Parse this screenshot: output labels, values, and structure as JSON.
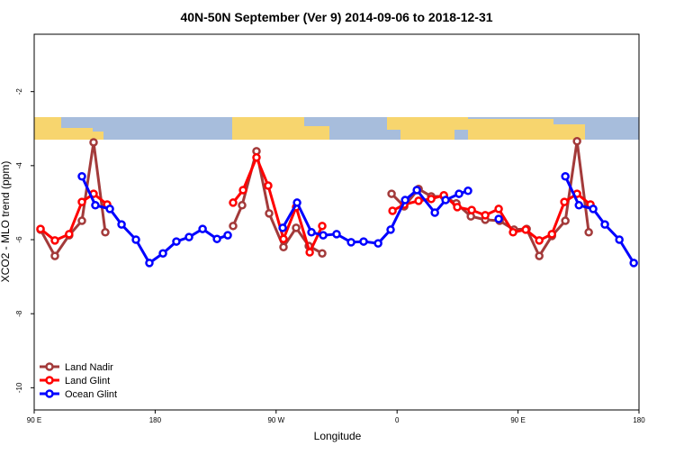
{
  "chart_data": {
    "type": "line",
    "title": "40N-50N September (Ver 9)   2014-09-06 to 2018-12-31",
    "x_label": "Longitude",
    "y_label": "XCO2 - MLO trend (ppm)",
    "xlim": [
      90,
      540
    ],
    "ylim": [
      -10.6,
      -0.45
    ],
    "xticks": [
      {
        "value": 90,
        "label": "90 E"
      },
      180,
      {
        "value": 270,
        "label": "90 W"
      },
      {
        "value": 360,
        "label": "0"
      },
      {
        "value": 450,
        "label": "90 E"
      },
      {
        "value": 540,
        "label": "180"
      }
    ],
    "yticks": [
      -2,
      -4,
      -6,
      -8,
      -10
    ],
    "legend": "bottom-left",
    "series": [
      {
        "name": "Land Nadir",
        "color": "#a33a3a",
        "x": [
          94.7,
          105.4,
          116,
          125.5,
          134.2,
          142.9,
          null,
          238,
          244.7,
          255.4,
          264.8,
          275.5,
          284.9,
          294.3,
          304.3,
          null,
          355.9,
          365.3,
          376,
          385.4,
          394.8,
          404.1,
          414.9,
          425.6,
          436.3,
          447,
          456.4,
          465.8,
          475.2,
          485.2,
          493.9,
          502.6
        ],
        "values": [
          -5.73,
          -6.44,
          -5.88,
          -5.49,
          -3.37,
          -5.8,
          null,
          -5.63,
          -5.07,
          -3.61,
          -5.29,
          -6.2,
          -5.68,
          -6.17,
          -6.37,
          null,
          -4.76,
          -5.1,
          -4.63,
          -4.83,
          -4.83,
          -5.02,
          -5.37,
          -5.46,
          -5.49,
          -5.73,
          -5.71,
          -6.44,
          -5.9,
          -5.49,
          -3.34,
          -5.8
        ]
      },
      {
        "name": "Land Glint",
        "color": "#ff0000",
        "x": [
          94.7,
          105.4,
          116,
          125.5,
          134.2,
          144.3,
          null,
          238,
          245.4,
          255.4,
          264.1,
          275.5,
          284.9,
          295,
          304.3,
          null,
          356.6,
          365.3,
          376,
          385.4,
          394.8,
          404.8,
          415.5,
          425.6,
          435.6,
          446.3,
          455.7,
          465.8,
          475.2,
          484.5,
          493.9,
          503.9
        ],
        "values": [
          -5.71,
          -6.02,
          -5.85,
          -4.98,
          -4.76,
          -5.05,
          null,
          -5,
          -4.66,
          -3.78,
          -4.54,
          -5.98,
          -5.12,
          -6.34,
          -5.63,
          null,
          -5.22,
          -5.05,
          -4.95,
          -4.9,
          -4.8,
          -5.12,
          -5.2,
          -5.34,
          -5.17,
          -5.8,
          -5.73,
          -6.02,
          -5.85,
          -4.98,
          -4.76,
          -5.05
        ]
      },
      {
        "name": "Ocean Glint",
        "color": "#0000ff",
        "x": [
          125.5,
          135.5,
          146.3,
          155,
          165.7,
          175.7,
          185.8,
          195.8,
          205.2,
          215.3,
          226,
          234,
          null,
          274.9,
          285.6,
          296.3,
          305,
          315,
          325.8,
          335.1,
          345.9,
          355.2,
          366,
          374.7,
          388.1,
          396.1,
          406.1,
          412.8,
          null,
          435.6,
          null,
          485.2,
          495.3,
          505.9,
          514.6,
          525.4,
          536.1
        ],
        "values": [
          -4.29,
          -5.07,
          -5.17,
          -5.59,
          -6,
          -6.63,
          -6.37,
          -6.05,
          -5.93,
          -5.71,
          -5.98,
          -5.88,
          null,
          -5.68,
          -5,
          -5.8,
          -5.88,
          -5.85,
          -6.07,
          -6.05,
          -6.1,
          -5.73,
          -4.93,
          -4.66,
          -5.27,
          -4.93,
          -4.76,
          -4.68,
          null,
          -5.44,
          null,
          -4.29,
          -5.07,
          -5.17,
          -5.59,
          -6,
          -6.63
        ]
      }
    ]
  }
}
